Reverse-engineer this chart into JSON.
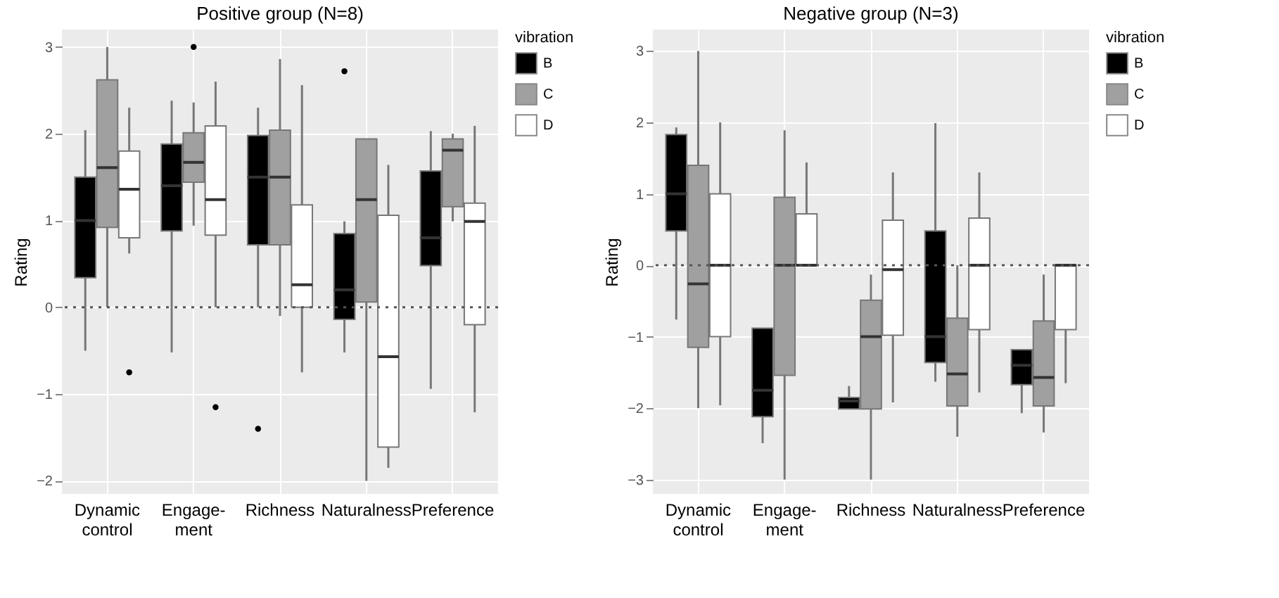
{
  "chart_data": [
    {
      "type": "box",
      "title": "Positive group (N=8)",
      "ylabel": "Rating",
      "legend_title": "vibration",
      "legend": "right",
      "grid": true,
      "categories": [
        "Dynamic control",
        "Engage-ment",
        "Richness",
        "Naturalness",
        "Preference"
      ],
      "ylim": [
        -2.15,
        3.2
      ],
      "yticks": [
        -2,
        -1,
        0,
        1,
        2,
        3
      ],
      "ref_lines": [
        {
          "axis": "y",
          "value": 0,
          "line_style": "dotted",
          "color": "#555555"
        }
      ],
      "series": [
        {
          "name": "B",
          "color": "#000000",
          "boxes": [
            {
              "low": -0.5,
              "q1": 0.34,
              "median": 1.0,
              "q3": 1.5,
              "high": 2.04
            },
            {
              "low": -0.52,
              "q1": 0.88,
              "median": 1.4,
              "q3": 1.88,
              "high": 2.38
            },
            {
              "low": 0,
              "q1": 0.72,
              "median": 1.5,
              "q3": 1.98,
              "high": 2.3,
              "outliers": [
                -1.4
              ]
            },
            {
              "low": -0.52,
              "q1": -0.14,
              "median": 0.2,
              "q3": 0.85,
              "high": 0.99,
              "outliers": [
                2.72
              ]
            },
            {
              "low": -0.94,
              "q1": 0.48,
              "median": 0.8,
              "q3": 1.57,
              "high": 2.03
            }
          ]
        },
        {
          "name": "C",
          "color": "#a0a0a0",
          "boxes": [
            {
              "low": 0,
              "q1": 0.92,
              "median": 1.61,
              "q3": 2.62,
              "high": 3.0
            },
            {
              "low": 0.94,
              "q1": 1.44,
              "median": 1.67,
              "q3": 2.01,
              "high": 2.36,
              "outliers": [
                3.0
              ]
            },
            {
              "low": -0.1,
              "q1": 0.72,
              "median": 1.5,
              "q3": 2.04,
              "high": 2.86
            },
            {
              "low": -2.0,
              "q1": 0.06,
              "median": 1.24,
              "q3": 1.94,
              "high": 1.94
            },
            {
              "low": 0.99,
              "q1": 1.16,
              "median": 1.81,
              "q3": 1.94,
              "high": 2.0
            }
          ]
        },
        {
          "name": "D",
          "color": "#ffffff",
          "boxes": [
            {
              "low": 0.62,
              "q1": 0.8,
              "median": 1.36,
              "q3": 1.8,
              "high": 2.3,
              "outliers": [
                -0.75
              ]
            },
            {
              "low": 0,
              "q1": 0.83,
              "median": 1.24,
              "q3": 2.09,
              "high": 2.6,
              "outliers": [
                -1.15
              ]
            },
            {
              "low": -0.75,
              "q1": 0,
              "median": 0.26,
              "q3": 1.18,
              "high": 2.56
            },
            {
              "low": -1.85,
              "q1": -1.61,
              "median": -0.57,
              "q3": 1.06,
              "high": 1.64
            },
            {
              "low": -1.21,
              "q1": -0.2,
              "median": 0.99,
              "q3": 1.2,
              "high": 2.09
            }
          ]
        }
      ]
    },
    {
      "type": "box",
      "title": "Negative group (N=3)",
      "ylabel": "Rating",
      "legend_title": "vibration",
      "legend": "right",
      "grid": true,
      "categories": [
        "Dynamic control",
        "Engage-ment",
        "Richness",
        "Naturalness",
        "Preference"
      ],
      "ylim": [
        -3.2,
        3.3
      ],
      "yticks": [
        -3,
        -2,
        -1,
        0,
        1,
        2,
        3
      ],
      "ref_lines": [
        {
          "axis": "y",
          "value": 0,
          "line_style": "dotted",
          "color": "#555555"
        }
      ],
      "series": [
        {
          "name": "B",
          "color": "#000000",
          "boxes": [
            {
              "low": -0.76,
              "q1": 0.48,
              "median": 1.0,
              "q3": 1.83,
              "high": 1.93
            },
            {
              "low": -2.49,
              "q1": -2.12,
              "median": -1.75,
              "q3": -0.88,
              "high": -0.88
            },
            {
              "low": -2.01,
              "q1": -2.01,
              "median": -1.9,
              "q3": -1.85,
              "high": -1.69
            },
            {
              "low": -1.63,
              "q1": -1.36,
              "median": -1.0,
              "q3": 0.48,
              "high": 1.99
            },
            {
              "low": -2.07,
              "q1": -1.67,
              "median": -1.4,
              "q3": -1.18,
              "high": -1.18
            }
          ]
        },
        {
          "name": "C",
          "color": "#a0a0a0",
          "boxes": [
            {
              "low": -2.0,
              "q1": -1.15,
              "median": -0.26,
              "q3": 1.4,
              "high": 3.0
            },
            {
              "low": -3.0,
              "q1": -1.54,
              "median": 0,
              "q3": 0.95,
              "high": 1.89
            },
            {
              "low": -3.0,
              "q1": -2.01,
              "median": -1.0,
              "q3": -0.49,
              "high": -0.13
            },
            {
              "low": -2.4,
              "q1": -1.97,
              "median": -1.52,
              "q3": -0.74,
              "high": 0
            },
            {
              "low": -2.34,
              "q1": -1.97,
              "median": -1.57,
              "q3": -0.78,
              "high": -0.13
            }
          ]
        },
        {
          "name": "D",
          "color": "#ffffff",
          "boxes": [
            {
              "low": -1.96,
              "q1": -1.0,
              "median": 0,
              "q3": 1.0,
              "high": 2.0
            },
            {
              "low": 0,
              "q1": 0,
              "median": 0,
              "q3": 0.72,
              "high": 1.44
            },
            {
              "low": -1.92,
              "q1": -0.98,
              "median": -0.06,
              "q3": 0.63,
              "high": 1.3
            },
            {
              "low": -1.78,
              "q1": -0.9,
              "median": 0,
              "q3": 0.66,
              "high": 1.3
            },
            {
              "low": -1.65,
              "q1": -0.9,
              "median": 0,
              "q3": 0,
              "high": 0
            }
          ]
        }
      ]
    }
  ]
}
